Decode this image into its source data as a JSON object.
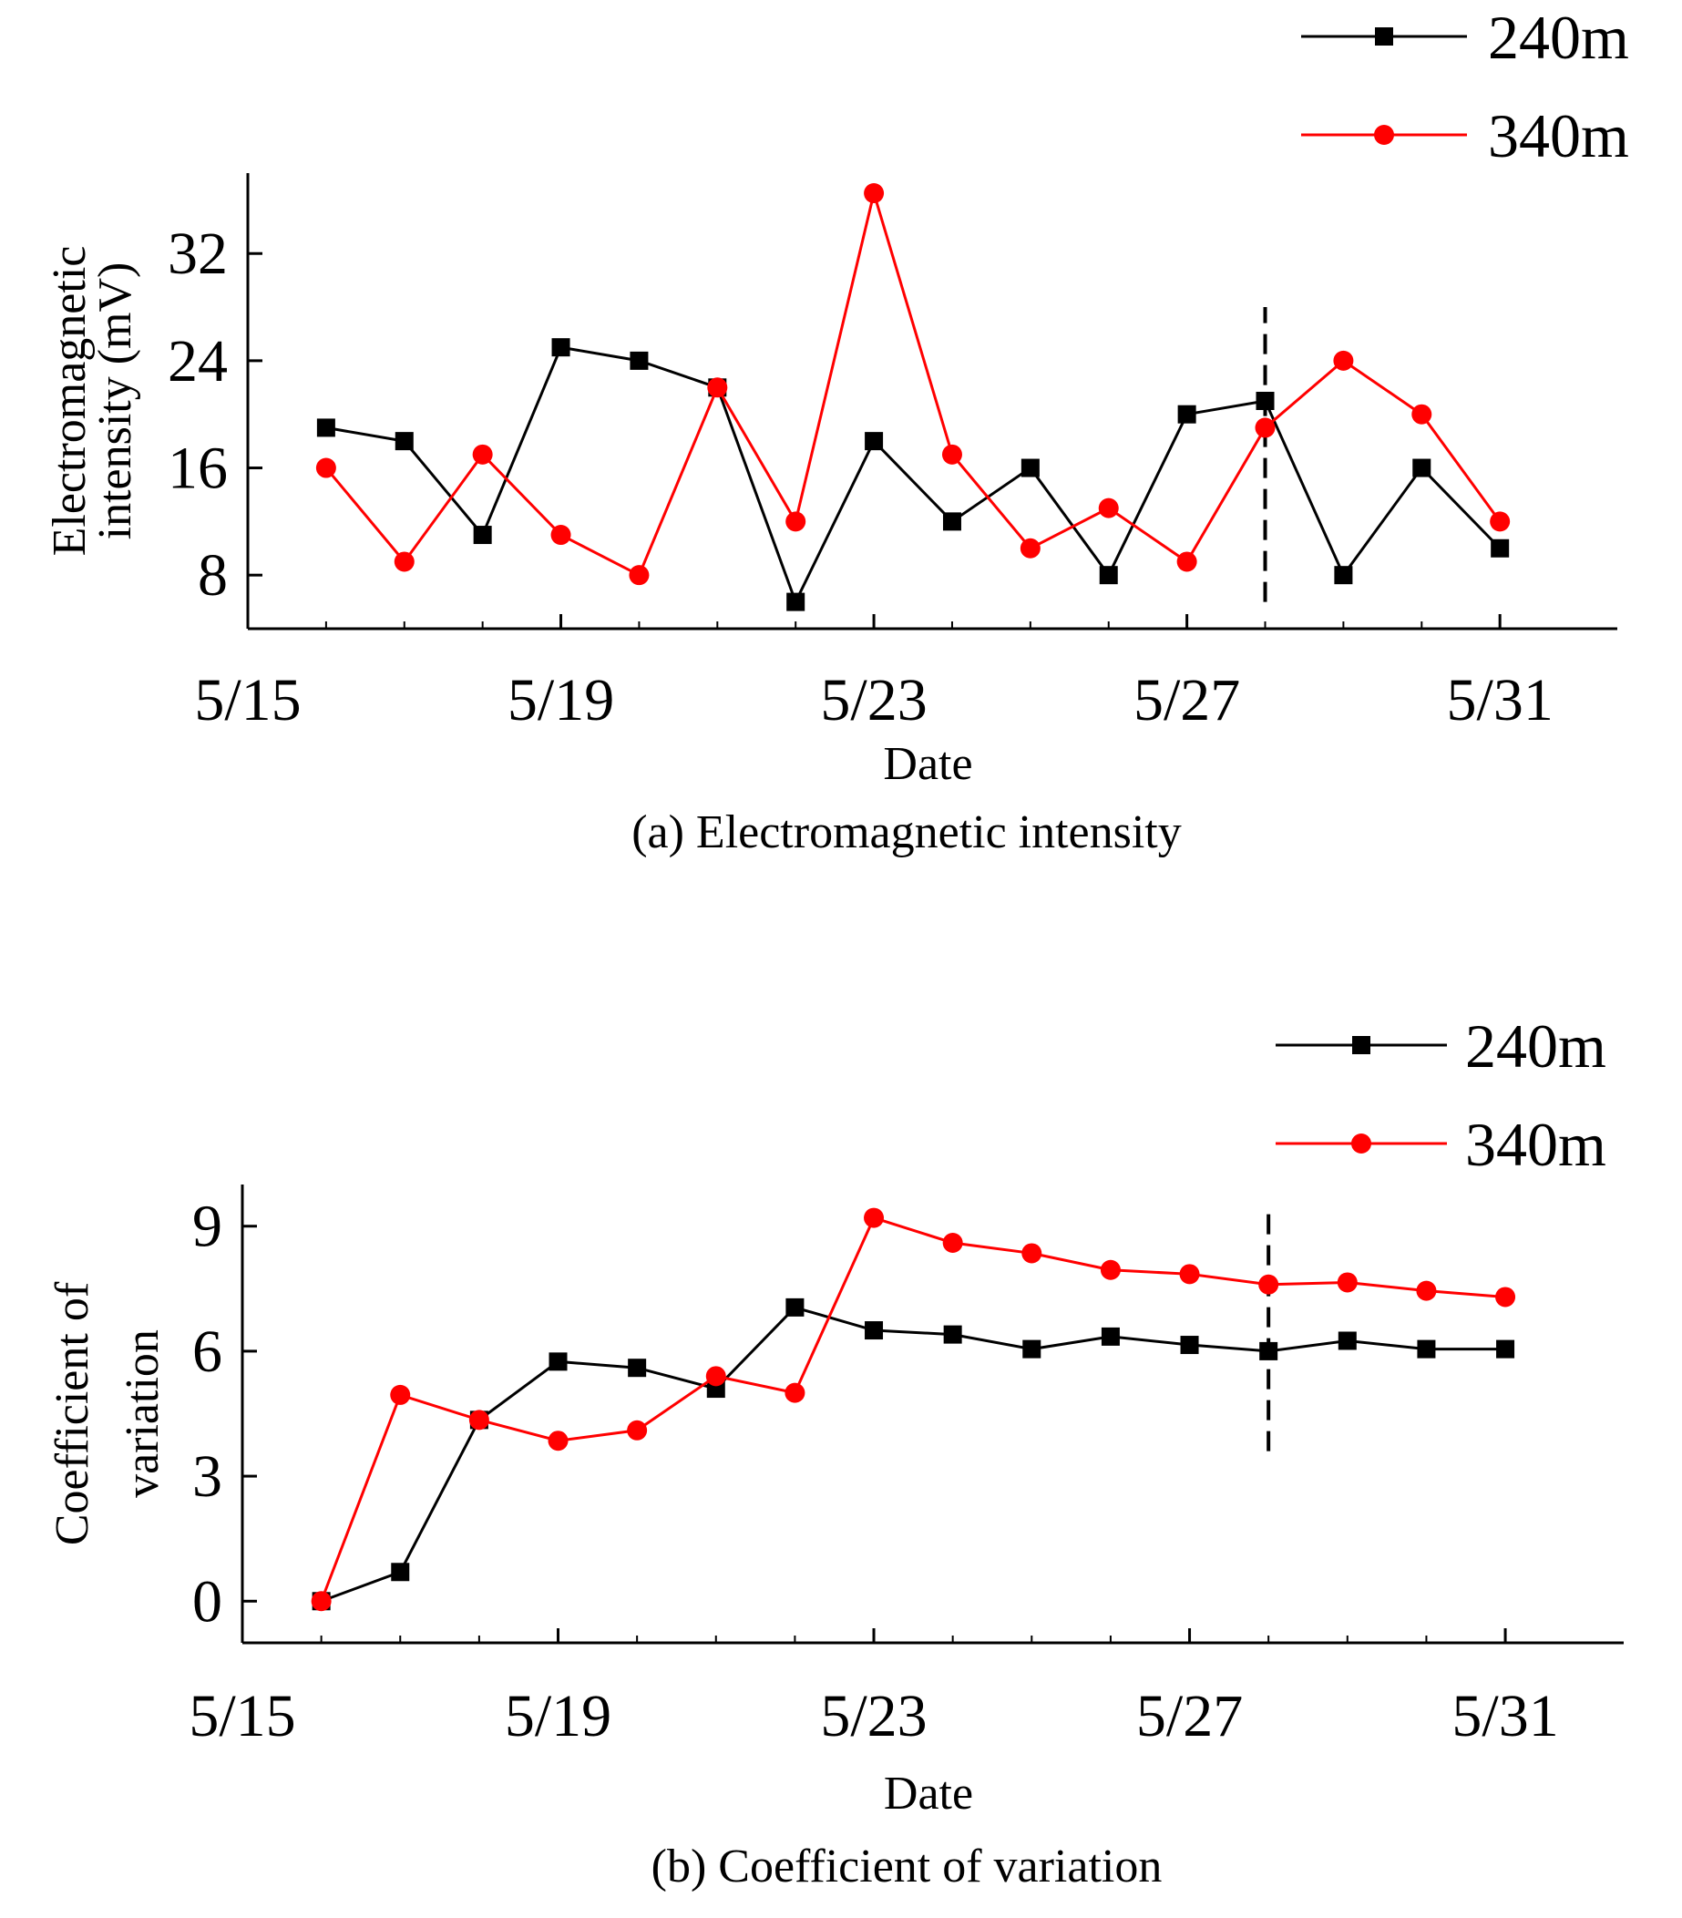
{
  "chart_data": [
    {
      "type": "line",
      "caption": "(a) Electromagnetic intensity",
      "xlabel": "Date",
      "ylabel": [
        "Electromagnetic",
        "intensity (mV)"
      ],
      "x_tick_labels": [
        "5/15",
        "5/19",
        "5/23",
        "5/27",
        "5/31"
      ],
      "x_tick_positions": [
        15,
        19,
        23,
        27,
        31
      ],
      "y_ticks": [
        8,
        16,
        24,
        32
      ],
      "xlim": [
        15,
        32.5
      ],
      "ylim": [
        4,
        38
      ],
      "marker_line_x": 28,
      "marker_line_y": [
        6,
        28
      ],
      "x": [
        16,
        17,
        18,
        19,
        20,
        21,
        22,
        23,
        24,
        25,
        26,
        27,
        28,
        29,
        30,
        31
      ],
      "series": [
        {
          "name": "240m",
          "color": "#000000",
          "marker": "square",
          "values": [
            19,
            18,
            11,
            25,
            24,
            22,
            6,
            18,
            12,
            16,
            8,
            20,
            21,
            8,
            16,
            10
          ]
        },
        {
          "name": "340m",
          "color": "#ff0000",
          "marker": "circle",
          "values": [
            16,
            9,
            17,
            11,
            8,
            22,
            12,
            36.5,
            17,
            10,
            13,
            9,
            19,
            24,
            20,
            12
          ]
        }
      ]
    },
    {
      "type": "line",
      "caption": "(b) Coefficient of variation",
      "xlabel": "Date",
      "ylabel": [
        "Coefficient of",
        "variation"
      ],
      "x_tick_labels": [
        "5/15",
        "5/19",
        "5/23",
        "5/27",
        "5/31"
      ],
      "x_tick_positions": [
        15,
        19,
        23,
        27,
        31
      ],
      "y_ticks": [
        0,
        3,
        6,
        9
      ],
      "xlim": [
        15,
        32.5
      ],
      "ylim": [
        -1,
        10
      ],
      "marker_line_x": 28,
      "marker_line_y": [
        3.6,
        9.4
      ],
      "x": [
        16,
        17,
        18,
        19,
        20,
        21,
        22,
        23,
        24,
        25,
        26,
        27,
        28,
        29,
        30,
        31
      ],
      "series": [
        {
          "name": "240m",
          "color": "#000000",
          "marker": "square",
          "values": [
            0,
            0.7,
            4.35,
            5.75,
            5.6,
            5.1,
            7.05,
            6.5,
            6.4,
            6.05,
            6.35,
            6.15,
            6.0,
            6.25,
            6.05,
            6.05
          ]
        },
        {
          "name": "340m",
          "color": "#ff0000",
          "marker": "circle",
          "values": [
            0,
            4.95,
            4.35,
            3.85,
            4.1,
            5.4,
            5.0,
            9.2,
            8.6,
            8.35,
            7.95,
            7.85,
            7.6,
            7.65,
            7.45,
            7.3
          ]
        }
      ]
    }
  ]
}
